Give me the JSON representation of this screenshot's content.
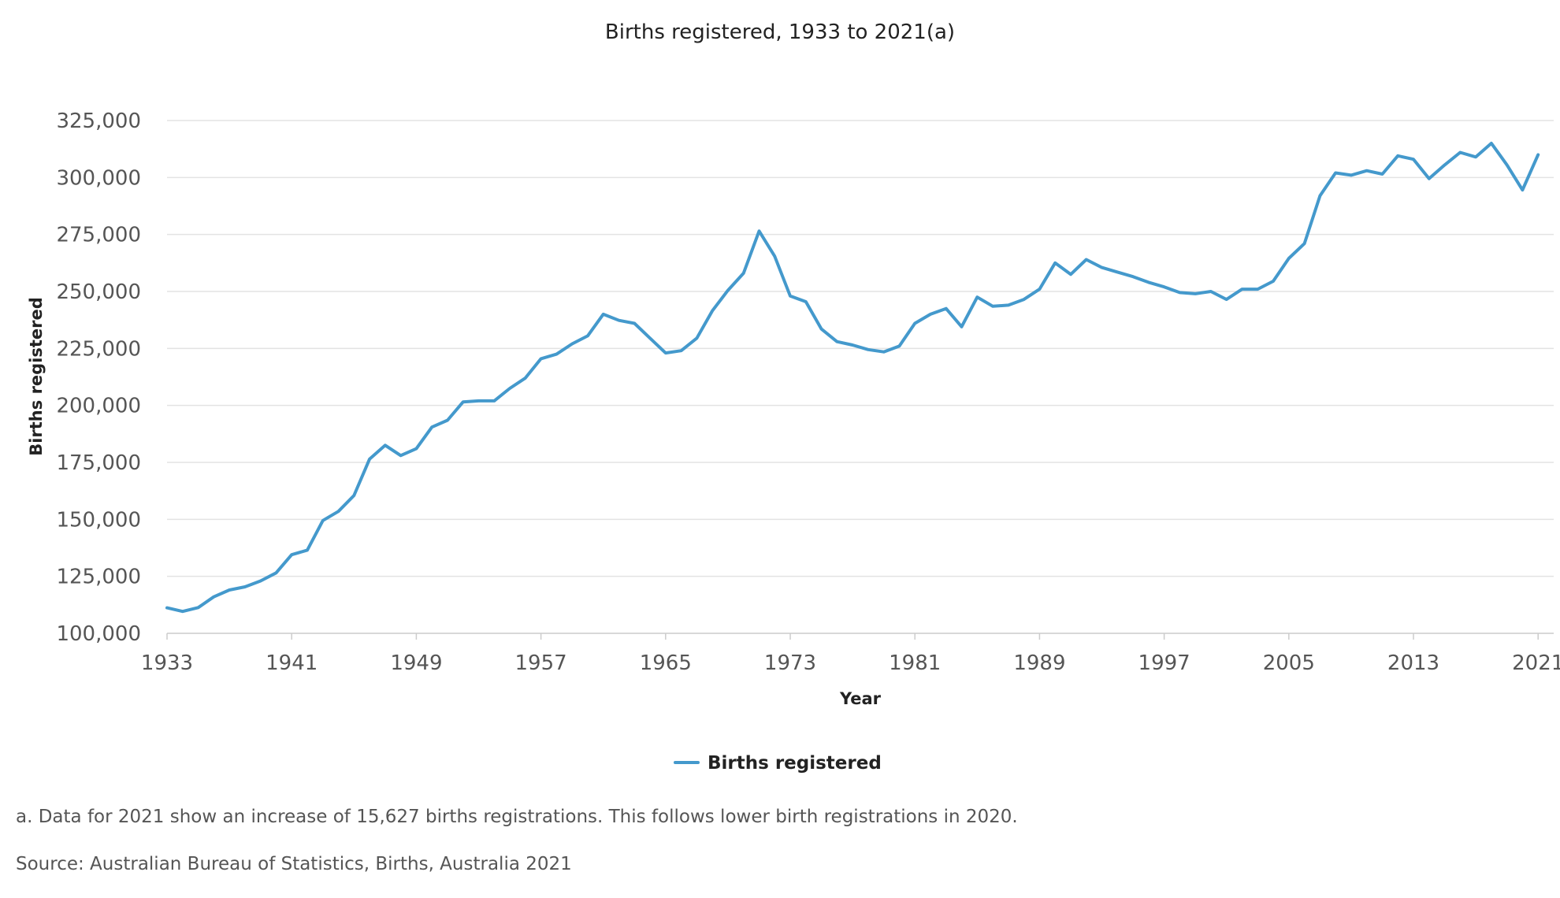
{
  "chart_data": {
    "type": "line",
    "title": "Births registered, 1933 to 2021(a)",
    "xlabel": "Year",
    "ylabel": "Births registered",
    "xlim": [
      1933,
      2022
    ],
    "ylim": [
      100000,
      325000
    ],
    "x_ticks": [
      1933,
      1941,
      1949,
      1957,
      1965,
      1973,
      1981,
      1989,
      1997,
      2005,
      2013,
      2021
    ],
    "x_tick_labels": [
      "1933",
      "1941",
      "1949",
      "1957",
      "1965",
      "1973",
      "1981",
      "1989",
      "1997",
      "2005",
      "2013",
      "2021"
    ],
    "y_ticks": [
      100000,
      125000,
      150000,
      175000,
      200000,
      225000,
      250000,
      275000,
      300000,
      325000
    ],
    "y_tick_labels": [
      "100,000",
      "125,000",
      "150,000",
      "175,000",
      "200,000",
      "225,000",
      "250,000",
      "275,000",
      "300,000",
      "325,000"
    ],
    "grid": "horizontal",
    "legend": "bottom-center",
    "x": [
      1933,
      1934,
      1935,
      1936,
      1937,
      1938,
      1939,
      1940,
      1941,
      1942,
      1943,
      1944,
      1945,
      1946,
      1947,
      1948,
      1949,
      1950,
      1951,
      1952,
      1953,
      1954,
      1955,
      1956,
      1957,
      1958,
      1959,
      1960,
      1961,
      1962,
      1963,
      1964,
      1965,
      1966,
      1967,
      1968,
      1969,
      1970,
      1971,
      1972,
      1973,
      1974,
      1975,
      1976,
      1977,
      1978,
      1979,
      1980,
      1981,
      1982,
      1983,
      1984,
      1985,
      1986,
      1987,
      1988,
      1989,
      1990,
      1991,
      1992,
      1993,
      1994,
      1995,
      1996,
      1997,
      1998,
      1999,
      2000,
      2001,
      2002,
      2003,
      2004,
      2005,
      2006,
      2007,
      2008,
      2009,
      2010,
      2011,
      2012,
      2013,
      2014,
      2015,
      2016,
      2017,
      2018,
      2019,
      2020,
      2021
    ],
    "series": [
      {
        "name": "Births registered",
        "color": "#4499cc",
        "values": [
          111200,
          109600,
          111300,
          116000,
          119000,
          120400,
          123000,
          126500,
          134500,
          136500,
          149500,
          153500,
          160500,
          176500,
          182500,
          178000,
          181000,
          190500,
          193500,
          201500,
          202000,
          202000,
          207500,
          212000,
          220500,
          222500,
          227000,
          230500,
          240000,
          237300,
          236000,
          229500,
          223000,
          224000,
          229500,
          241500,
          250500,
          258000,
          276500,
          265500,
          248000,
          245500,
          233500,
          228000,
          226500,
          224500,
          223500,
          226000,
          236000,
          240000,
          242500,
          234500,
          247500,
          243500,
          244000,
          246500,
          251000,
          262500,
          257500,
          264000,
          260500,
          258500,
          256500,
          254000,
          252000,
          249500,
          249000,
          250000,
          246500,
          251000,
          251000,
          254500,
          264500,
          271000,
          292000,
          302000,
          301000,
          303000,
          301500,
          309500,
          308000,
          299500,
          305500,
          311000,
          309000,
          315000,
          305500,
          294500,
          310000
        ]
      }
    ]
  },
  "notes": {
    "footnote": "a. Data for 2021 show an increase of 15,627 births registrations. This follows lower birth registrations in 2020.",
    "source": "Source: Australian Bureau of Statistics, Births, Australia 2021"
  }
}
